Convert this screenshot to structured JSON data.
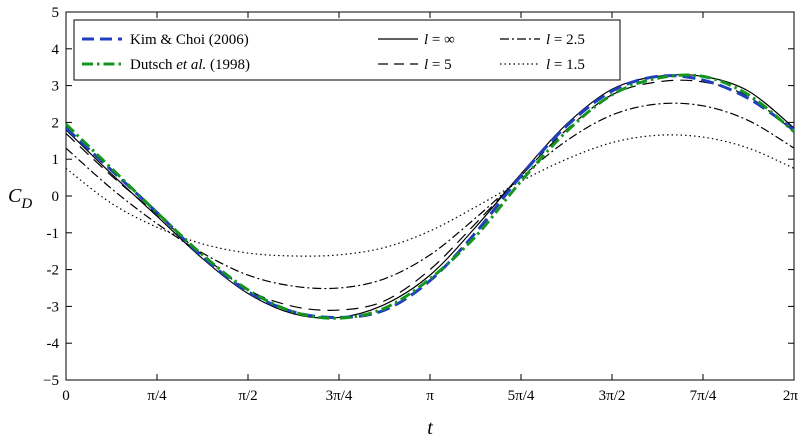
{
  "chart_data": {
    "type": "line",
    "xlabel": "t",
    "ylabel": "C",
    "ylabel_sub": "D",
    "xlim": [
      0,
      6.2832
    ],
    "ylim": [
      -5,
      5
    ],
    "x_ticks": [
      {
        "value": 0,
        "label": "0"
      },
      {
        "value": 0.7854,
        "label": "π/4"
      },
      {
        "value": 1.5708,
        "label": "π/2"
      },
      {
        "value": 2.3562,
        "label": "3π/4"
      },
      {
        "value": 3.1416,
        "label": "π"
      },
      {
        "value": 3.927,
        "label": "5π/4"
      },
      {
        "value": 4.7124,
        "label": "3π/2"
      },
      {
        "value": 5.4978,
        "label": "7π/4"
      },
      {
        "value": 6.2832,
        "label": "2π"
      }
    ],
    "y_ticks": [
      {
        "value": 5,
        "label": "5"
      },
      {
        "value": 4,
        "label": "4"
      },
      {
        "value": 3,
        "label": "3"
      },
      {
        "value": 2,
        "label": "2"
      },
      {
        "value": 1,
        "label": "1"
      },
      {
        "value": 0,
        "label": "0"
      },
      {
        "value": -1,
        "label": "-1"
      },
      {
        "value": -2,
        "label": "-2"
      },
      {
        "value": -3,
        "label": "-3"
      },
      {
        "value": -4,
        "label": "-4"
      },
      {
        "value": -5,
        "label": "−5"
      }
    ],
    "grid": false,
    "legend_position": "top",
    "series": [
      {
        "name": "Kim & Choi (2006)",
        "color": "#1f3fbf",
        "dash": "long-dash",
        "x": [
          0,
          0.3927,
          0.7854,
          1.1781,
          1.5708,
          1.9635,
          2.3562,
          2.7489,
          3.1416,
          3.5343,
          3.927,
          4.3197,
          4.7124,
          5.1051,
          5.4978,
          5.8905,
          6.2832
        ],
        "y": [
          1.85,
          0.7,
          -0.45,
          -1.65,
          -2.6,
          -3.15,
          -3.3,
          -3.1,
          -2.3,
          -1.0,
          0.55,
          1.9,
          2.85,
          3.25,
          3.15,
          2.65,
          1.8
        ]
      },
      {
        "name": "Dutsch et al. (1998)",
        "name_prefix": "Dutsch ",
        "name_italic": "et al.",
        "name_suffix": " (1998)",
        "color": "#14961e",
        "dash": "dash-dot",
        "x": [
          0,
          0.3927,
          0.7854,
          1.1781,
          1.5708,
          1.9635,
          2.3562,
          2.7489,
          3.1416,
          3.5343,
          3.927,
          4.3197,
          4.7124,
          5.1051,
          5.4978,
          5.8905,
          6.2832
        ],
        "y": [
          1.95,
          0.75,
          -0.45,
          -1.6,
          -2.55,
          -3.15,
          -3.32,
          -3.05,
          -2.25,
          -1.1,
          0.4,
          1.75,
          2.75,
          3.2,
          3.25,
          2.75,
          1.75
        ]
      },
      {
        "name": "l = ∞",
        "name_var": "l",
        "name_val": " = ∞",
        "color": "#000000",
        "dash": "solid",
        "x": [
          0,
          0.3927,
          0.7854,
          1.1781,
          1.5708,
          1.9635,
          2.3562,
          2.7489,
          3.1416,
          3.5343,
          3.927,
          4.3197,
          4.7124,
          5.1051,
          5.4978,
          5.8905,
          6.2832
        ],
        "y": [
          1.8,
          0.6,
          -0.55,
          -1.7,
          -2.65,
          -3.2,
          -3.3,
          -2.95,
          -2.15,
          -0.85,
          0.6,
          1.95,
          2.9,
          3.25,
          3.25,
          2.85,
          1.85
        ]
      },
      {
        "name": "l = 5",
        "name_var": "l",
        "name_val": " = 5",
        "color": "#000000",
        "dash": "long-dash",
        "x": [
          0,
          0.3927,
          0.7854,
          1.1781,
          1.5708,
          1.9635,
          2.3562,
          2.7489,
          3.1416,
          3.5343,
          3.927,
          4.3197,
          4.7124,
          5.1051,
          5.4978,
          5.8905,
          6.2832
        ],
        "y": [
          1.7,
          0.55,
          -0.5,
          -1.6,
          -2.55,
          -3.0,
          -3.1,
          -2.85,
          -2.0,
          -0.75,
          0.55,
          1.8,
          2.75,
          3.1,
          3.1,
          2.7,
          1.75
        ]
      },
      {
        "name": "l = 2.5",
        "name_var": "l",
        "name_val": " = 2.5",
        "color": "#000000",
        "dash": "dash-dot",
        "x": [
          0,
          0.3927,
          0.7854,
          1.1781,
          1.5708,
          1.9635,
          2.3562,
          2.7489,
          3.1416,
          3.5343,
          3.927,
          4.3197,
          4.7124,
          5.1051,
          5.4978,
          5.8905,
          6.2832
        ],
        "y": [
          1.3,
          0.2,
          -0.75,
          -1.55,
          -2.15,
          -2.45,
          -2.5,
          -2.25,
          -1.6,
          -0.6,
          0.5,
          1.5,
          2.2,
          2.5,
          2.45,
          2.05,
          1.3
        ]
      },
      {
        "name": "l = 1.5",
        "name_var": "l",
        "name_val": " = 1.5",
        "color": "#000000",
        "dash": "dotted",
        "x": [
          0,
          0.3927,
          0.7854,
          1.1781,
          1.5708,
          1.9635,
          2.3562,
          2.7489,
          3.1416,
          3.5343,
          3.927,
          4.3197,
          4.7124,
          5.1051,
          5.4978,
          5.8905,
          6.2832
        ],
        "y": [
          0.75,
          -0.2,
          -0.85,
          -1.3,
          -1.55,
          -1.63,
          -1.6,
          -1.4,
          -0.95,
          -0.3,
          0.4,
          1.0,
          1.45,
          1.65,
          1.6,
          1.3,
          0.75
        ]
      }
    ]
  }
}
